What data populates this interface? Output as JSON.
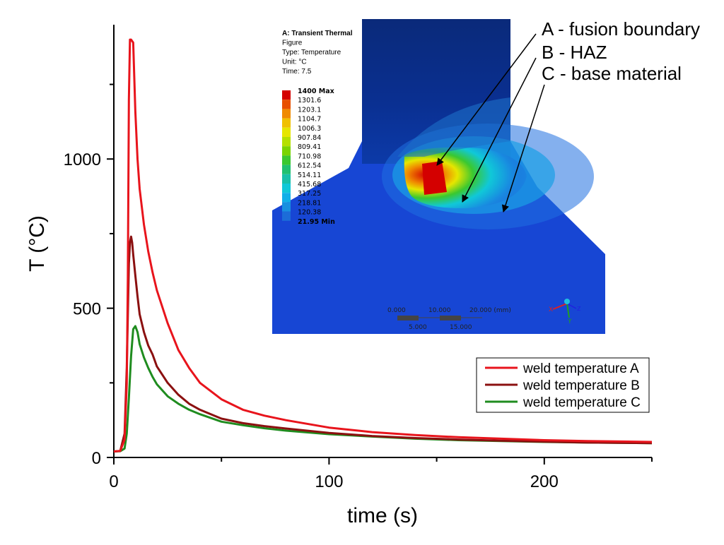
{
  "chart_data": {
    "type": "line",
    "title": "",
    "xlabel": "time (s)",
    "ylabel": "T (°C)",
    "xlim": [
      0,
      250
    ],
    "ylim": [
      0,
      1450
    ],
    "x_ticks": [
      0,
      100,
      200
    ],
    "y_ticks": [
      0,
      500,
      1000
    ],
    "grid": false,
    "legend_position": "lower-right",
    "series": [
      {
        "name": "weld temperature A",
        "color": "#e8141c",
        "x": [
          0,
          3,
          5,
          6,
          6.5,
          7,
          7.5,
          8,
          9,
          10,
          11,
          12,
          14,
          16,
          18,
          20,
          25,
          30,
          35,
          40,
          50,
          60,
          70,
          80,
          100,
          120,
          140,
          160,
          180,
          200,
          220,
          250
        ],
        "y": [
          20,
          22,
          60,
          250,
          600,
          1200,
          1400,
          1400,
          1390,
          1160,
          1000,
          900,
          780,
          690,
          620,
          560,
          450,
          360,
          300,
          250,
          195,
          160,
          140,
          125,
          100,
          85,
          75,
          68,
          63,
          58,
          55,
          52
        ]
      },
      {
        "name": "weld temperature B",
        "color": "#8b1010",
        "x": [
          0,
          3,
          5,
          6,
          7,
          7.5,
          8,
          8.5,
          9,
          10,
          11,
          12,
          14,
          16,
          18,
          20,
          25,
          30,
          35,
          40,
          50,
          60,
          70,
          80,
          100,
          120,
          140,
          160,
          180,
          200,
          220,
          250
        ],
        "y": [
          20,
          22,
          80,
          300,
          650,
          720,
          740,
          720,
          680,
          610,
          540,
          480,
          420,
          375,
          345,
          305,
          250,
          210,
          180,
          160,
          130,
          115,
          105,
          97,
          82,
          72,
          65,
          60,
          56,
          53,
          50,
          48
        ]
      },
      {
        "name": "weld temperature C",
        "color": "#1f8c1f",
        "x": [
          0,
          3,
          5,
          6,
          7,
          8,
          9,
          10,
          11,
          12,
          14,
          16,
          18,
          20,
          25,
          30,
          35,
          40,
          50,
          60,
          70,
          80,
          100,
          120,
          140,
          160,
          180,
          200,
          220,
          250
        ],
        "y": [
          20,
          21,
          30,
          80,
          200,
          340,
          430,
          440,
          420,
          380,
          335,
          300,
          270,
          245,
          205,
          180,
          160,
          145,
          120,
          108,
          98,
          90,
          78,
          70,
          63,
          58,
          55,
          52,
          50,
          48
        ]
      }
    ]
  },
  "inset": {
    "header": [
      "A: Transient Thermal",
      "Figure",
      "Type: Temperature",
      "Unit: °C",
      "Time: 7.5"
    ],
    "legend_values": [
      "1400 Max",
      "1301.6",
      "1203.1",
      "1104.7",
      "1006.3",
      "907.84",
      "809.41",
      "710.98",
      "612.54",
      "514.11",
      "415.68",
      "317.25",
      "218.81",
      "120.38",
      "21.95 Min"
    ],
    "legend_colors": [
      "#d40000",
      "#e85000",
      "#f08a00",
      "#f0c000",
      "#e6e600",
      "#b4e000",
      "#7ad400",
      "#3ac830",
      "#20c070",
      "#18c0a8",
      "#10c8d8",
      "#10b0e8",
      "#1890e0",
      "#1c6cd8"
    ],
    "scale_top": [
      "0.000",
      "10.000",
      "20.000 (mm)"
    ],
    "scale_bottom": [
      "5.000",
      "15.000"
    ],
    "triad": [
      "X",
      "Y",
      "Z"
    ]
  },
  "annotations": [
    "A - fusion boundary",
    "B - HAZ",
    "C - base material"
  ]
}
